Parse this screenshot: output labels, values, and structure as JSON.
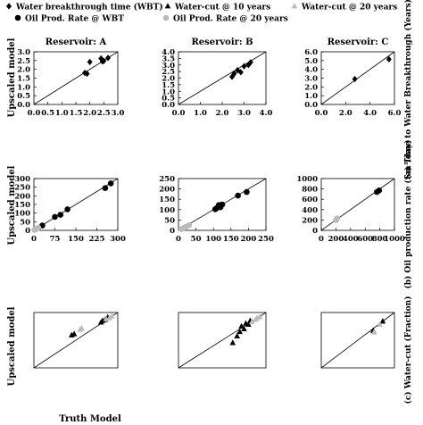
{
  "legend": {
    "entries": [
      {
        "label": "Water breakthrough time (WBT)",
        "marker": "diamond",
        "color": "#000000"
      },
      {
        "label": "Water-cut @ 10 years",
        "marker": "triangle",
        "color": "#000000"
      },
      {
        "label": "Water-cut @ 20 years",
        "marker": "triangle",
        "color": "#bbbbbb"
      },
      {
        "label": "Oil Prod. Rate @ WBT",
        "marker": "circle",
        "color": "#000000"
      },
      {
        "label": "Oil Prod. Rate @ 20 years",
        "marker": "circle",
        "color": "#bbbbbb"
      }
    ]
  },
  "labels": {
    "xlabel": "Truth Model",
    "ylabel": "Upscaled model",
    "row_labels": [
      "(a) Time to Water Breakthrough (Years)",
      "(b) Oil production rate (Sm³/day)",
      "(c) Water-cut (Fraction)"
    ]
  },
  "chart_data": [
    {
      "type": "scatter",
      "title": "Reservoir: A",
      "row": 0,
      "col": 0,
      "xlim": [
        0,
        3
      ],
      "ylim": [
        0,
        3
      ],
      "xticks": [
        "0.0",
        "0.5",
        "1.0",
        "1.5",
        "2.0",
        "2.5",
        "3.0"
      ],
      "yticks": [
        "0.0",
        "0.5",
        "1.0",
        "1.5",
        "2.0",
        "2.5",
        "3.0"
      ],
      "series": [
        {
          "marker": "diamond",
          "color": "#000000",
          "x": [
            1.82,
            1.9,
            2.0,
            2.4,
            2.45,
            2.5,
            2.65
          ],
          "y": [
            1.8,
            1.75,
            2.42,
            2.62,
            2.45,
            2.48,
            2.65
          ]
        }
      ]
    },
    {
      "type": "scatter",
      "title": "Reservoir: B",
      "row": 0,
      "col": 1,
      "xlim": [
        0,
        4
      ],
      "ylim": [
        0,
        4
      ],
      "xticks": [
        "0.0",
        "1.0",
        "2.0",
        "3.0",
        "4.0"
      ],
      "yticks": [
        "0.0",
        "0.5",
        "1.0",
        "1.5",
        "2.0",
        "2.5",
        "3.0",
        "3.5",
        "4.0"
      ],
      "series": [
        {
          "marker": "diamond",
          "color": "#000000",
          "x": [
            2.45,
            2.55,
            2.7,
            2.85,
            3.0,
            3.2,
            3.3
          ],
          "y": [
            2.1,
            2.35,
            2.6,
            2.45,
            2.9,
            3.0,
            3.2
          ]
        }
      ]
    },
    {
      "type": "scatter",
      "title": "Reservoir: C",
      "row": 0,
      "col": 2,
      "xlim": [
        0,
        6
      ],
      "ylim": [
        0,
        6
      ],
      "xticks": [
        "0.0",
        "2.0",
        "4.0",
        "6.0"
      ],
      "yticks": [
        "0.0",
        "1.0",
        "2.0",
        "3.0",
        "4.0",
        "5.0",
        "6.0"
      ],
      "series": [
        {
          "marker": "diamond",
          "color": "#000000",
          "x": [
            2.75,
            5.55
          ],
          "y": [
            2.9,
            5.15
          ]
        }
      ]
    },
    {
      "type": "scatter",
      "row": 1,
      "col": 0,
      "xlim": [
        0,
        300
      ],
      "ylim": [
        0,
        300
      ],
      "xticks": [
        "0",
        "75",
        "150",
        "225",
        "300"
      ],
      "yticks": [
        "0",
        "50",
        "100",
        "150",
        "200",
        "250",
        "300"
      ],
      "series": [
        {
          "marker": "circle",
          "color": "#000000",
          "x": [
            30,
            75,
            95,
            120,
            255,
            275
          ],
          "y": [
            28,
            78,
            90,
            122,
            245,
            272
          ]
        },
        {
          "marker": "circle",
          "color": "#bbbbbb",
          "x": [
            2,
            5,
            8,
            10,
            13,
            16
          ],
          "y": [
            2,
            5,
            7,
            10,
            12,
            15
          ]
        }
      ]
    },
    {
      "type": "scatter",
      "row": 1,
      "col": 1,
      "xlim": [
        0,
        250
      ],
      "ylim": [
        0,
        250
      ],
      "xticks": [
        "0",
        "50",
        "100",
        "150",
        "200",
        "250"
      ],
      "yticks": [
        "0",
        "50",
        "100",
        "150",
        "200",
        "250"
      ],
      "series": [
        {
          "marker": "circle",
          "color": "#000000",
          "x": [
            105,
            110,
            115,
            120,
            125,
            170,
            195
          ],
          "y": [
            102,
            108,
            122,
            112,
            125,
            168,
            185
          ]
        },
        {
          "marker": "circle",
          "color": "#bbbbbb",
          "x": [
            8,
            15,
            22,
            30
          ],
          "y": [
            6,
            12,
            18,
            25
          ]
        }
      ]
    },
    {
      "type": "scatter",
      "row": 1,
      "col": 2,
      "xlim": [
        0,
        1000
      ],
      "ylim": [
        0,
        1000
      ],
      "xticks": [
        "0",
        "200",
        "400",
        "600",
        "800",
        "1000"
      ],
      "yticks": [
        "0",
        "200",
        "400",
        "600",
        "800",
        "1000"
      ],
      "series": [
        {
          "marker": "circle",
          "color": "#000000",
          "x": [
            760,
            790
          ],
          "y": [
            740,
            770
          ]
        },
        {
          "marker": "circle",
          "color": "#bbbbbb",
          "x": [
            200,
            215
          ],
          "y": [
            195,
            230
          ]
        }
      ]
    },
    {
      "type": "scatter",
      "row": 2,
      "col": 0,
      "xlim": [
        0,
        1
      ],
      "ylim": [
        0,
        1
      ],
      "series": [
        {
          "marker": "triangle",
          "color": "#000000",
          "x": [
            0.45,
            0.48,
            0.8,
            0.82,
            0.85,
            0.88
          ],
          "y": [
            0.59,
            0.61,
            0.82,
            0.85,
            0.87,
            0.91
          ]
        },
        {
          "marker": "triangle",
          "color": "#bbbbbb",
          "x": [
            0.55,
            0.57,
            0.86,
            0.9,
            0.93
          ],
          "y": [
            0.69,
            0.71,
            0.88,
            0.9,
            0.93
          ]
        }
      ]
    },
    {
      "type": "scatter",
      "row": 2,
      "col": 1,
      "xlim": [
        0,
        1
      ],
      "ylim": [
        0,
        1
      ],
      "series": [
        {
          "marker": "triangle",
          "color": "#000000",
          "x": [
            0.62,
            0.67,
            0.7,
            0.72,
            0.75,
            0.77,
            0.8,
            0.82
          ],
          "y": [
            0.45,
            0.57,
            0.65,
            0.75,
            0.7,
            0.8,
            0.78,
            0.85
          ]
        },
        {
          "marker": "triangle",
          "color": "#bbbbbb",
          "x": [
            0.84,
            0.88,
            0.9,
            0.93
          ],
          "y": [
            0.83,
            0.87,
            0.9,
            0.92
          ]
        }
      ]
    },
    {
      "type": "scatter",
      "row": 2,
      "col": 2,
      "xlim": [
        0,
        1
      ],
      "ylim": [
        0,
        1
      ],
      "series": [
        {
          "marker": "triangle",
          "color": "#000000",
          "x": [
            0.71,
            0.84
          ],
          "y": [
            0.67,
            0.84
          ]
        },
        {
          "marker": "triangle",
          "color": "#bbbbbb",
          "x": [
            0.72,
            0.8
          ],
          "y": [
            0.64,
            0.78
          ]
        }
      ]
    }
  ]
}
